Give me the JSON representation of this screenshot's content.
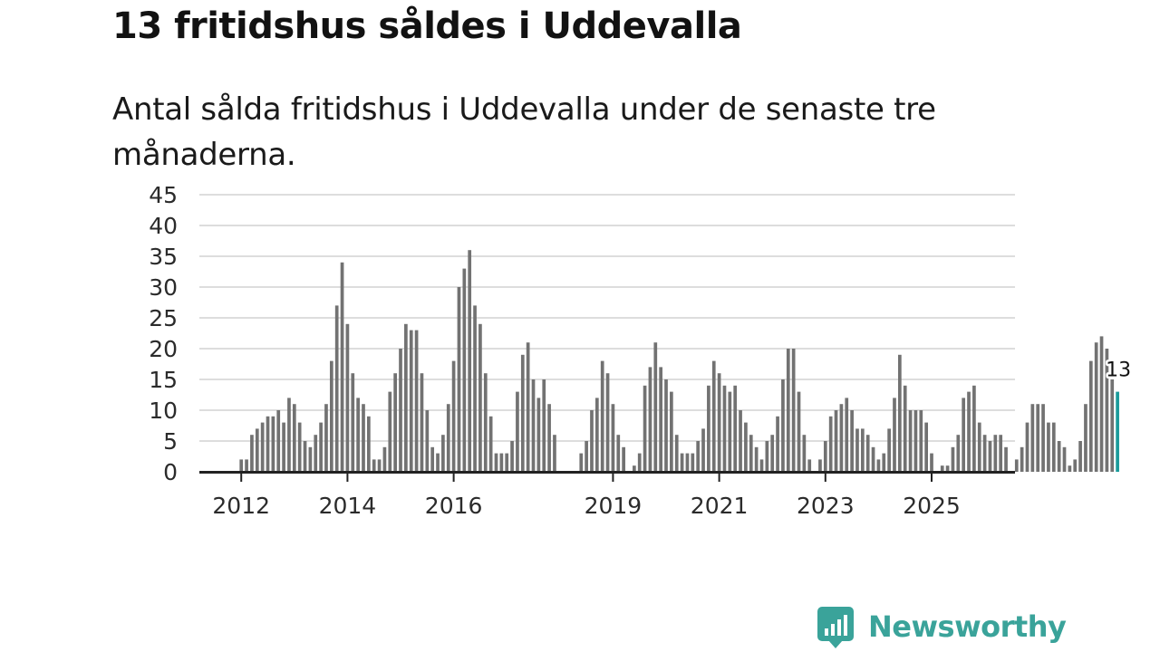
{
  "colors": {
    "bar": "#727272",
    "highlight": "#1a9b9b",
    "grid": "#dddddd",
    "axis": "#222222",
    "brand": "#3aa39a"
  },
  "chart_data": {
    "type": "bar",
    "title": "13 fritidshus såldes i Uddevalla",
    "subtitle": "Antal sålda fritidshus i Uddevalla under de senaste tre månaderna.",
    "xlabel": "",
    "ylabel": "",
    "ylim": [
      0,
      45
    ],
    "yticks": [
      0,
      5,
      10,
      15,
      20,
      25,
      30,
      35,
      40,
      45
    ],
    "xticks": [
      {
        "label": "2012",
        "index": 1
      },
      {
        "label": "2014",
        "index": 21
      },
      {
        "label": "2016",
        "index": 41
      },
      {
        "label": "2019",
        "index": 71
      },
      {
        "label": "2021",
        "index": 91
      },
      {
        "label": "2023",
        "index": 111
      },
      {
        "label": "2025",
        "index": 131
      }
    ],
    "values": [
      0,
      2,
      2,
      6,
      7,
      8,
      9,
      9,
      10,
      8,
      12,
      11,
      8,
      5,
      4,
      6,
      8,
      11,
      18,
      27,
      34,
      24,
      16,
      12,
      11,
      9,
      2,
      2,
      4,
      13,
      16,
      20,
      24,
      23,
      23,
      16,
      10,
      4,
      3,
      6,
      11,
      18,
      30,
      33,
      36,
      27,
      24,
      16,
      9,
      3,
      3,
      3,
      5,
      13,
      19,
      21,
      15,
      12,
      15,
      11,
      6,
      0,
      0,
      0,
      0,
      3,
      5,
      10,
      12,
      18,
      16,
      11,
      6,
      4,
      0,
      1,
      3,
      14,
      17,
      21,
      17,
      15,
      13,
      6,
      3,
      3,
      3,
      5,
      7,
      14,
      18,
      16,
      14,
      13,
      14,
      10,
      8,
      6,
      4,
      2,
      5,
      6,
      9,
      15,
      20,
      20,
      13,
      6,
      2,
      0,
      2,
      5,
      9,
      10,
      11,
      12,
      10,
      7,
      7,
      6,
      4,
      2,
      3,
      7,
      12,
      19,
      14,
      10,
      10,
      10,
      8,
      3,
      0,
      1,
      1,
      4,
      6,
      12,
      13,
      14,
      8,
      6,
      5,
      6,
      6,
      4,
      0,
      2,
      4,
      8,
      11,
      11,
      11,
      8,
      8,
      5,
      4,
      1,
      2,
      5,
      11,
      18,
      21,
      22,
      20,
      15,
      13
    ],
    "last_value_label": "13"
  },
  "brand": {
    "name": "Newsworthy",
    "icon": "newsworthy-logo-icon"
  }
}
